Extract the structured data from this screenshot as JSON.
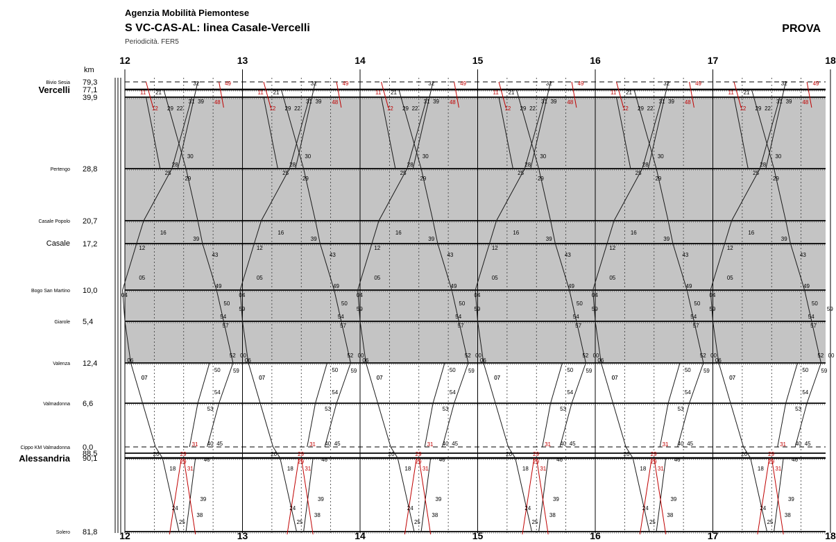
{
  "header": {
    "organization": "Agenzia Mobilità Piemontese",
    "title": "S VC-CAS-AL: linea Casale-Vercelli",
    "periodicity": "Periodicità. FER5",
    "watermark": "PROVA",
    "km_label": "km"
  },
  "hours": [
    "12",
    "13",
    "14",
    "15",
    "16",
    "17",
    "18"
  ],
  "stations": [
    {
      "name": "Bivio Sesia",
      "km": "79,3",
      "dashed": true
    },
    {
      "name": "Vercelli",
      "km": "77,1",
      "bold": true
    },
    {
      "name": "",
      "km": "39,9"
    },
    {
      "name": "Pertengo",
      "km": "28,8"
    },
    {
      "name": "Casale Popolo",
      "km": "20,7"
    },
    {
      "name": "Casale",
      "km": "17,2",
      "large": true
    },
    {
      "name": "Bogo San Martino",
      "km": "10,0"
    },
    {
      "name": "Giarole",
      "km": "5,4"
    },
    {
      "name": "Valenza",
      "km": "12,4"
    },
    {
      "name": "Valmadonna",
      "km": "6,6"
    },
    {
      "name": "Cippo KM Valmadonna",
      "km": "0,0",
      "dashed": true
    },
    {
      "name": "",
      "km": "88,5"
    },
    {
      "name": "Alessandria",
      "km": "90,1",
      "bold": true
    },
    {
      "name": "Solero",
      "km": "81,8"
    }
  ],
  "minute_labels": {
    "top_red": [
      "11",
      "12",
      "48",
      "49"
    ],
    "top_black": [
      "21",
      "29",
      "22",
      "30",
      "31",
      "32",
      "39",
      "40",
      "41"
    ],
    "pertengo": [
      "25",
      "28",
      "29",
      "30"
    ],
    "casale_popolo": [
      "16"
    ],
    "casale": [
      "12",
      "39",
      "43"
    ],
    "bogo": [
      "04",
      "05",
      "49",
      "50"
    ],
    "giarole": [
      "54",
      "57",
      "59"
    ],
    "valenza": [
      "06",
      "07",
      "50",
      "52",
      "59",
      "00"
    ],
    "valmadonna": [
      "53",
      "54"
    ],
    "cippo": [
      "20",
      "40",
      "45"
    ],
    "alessandria_red": [
      "29",
      "31"
    ],
    "alessandria": [
      "18",
      "46"
    ],
    "solero": [
      "24",
      "25",
      "38",
      "39"
    ]
  },
  "colors": {
    "band": "#c4c4c4",
    "line": "#1a1a1a",
    "red": "#c00000",
    "grid": "#000000"
  }
}
